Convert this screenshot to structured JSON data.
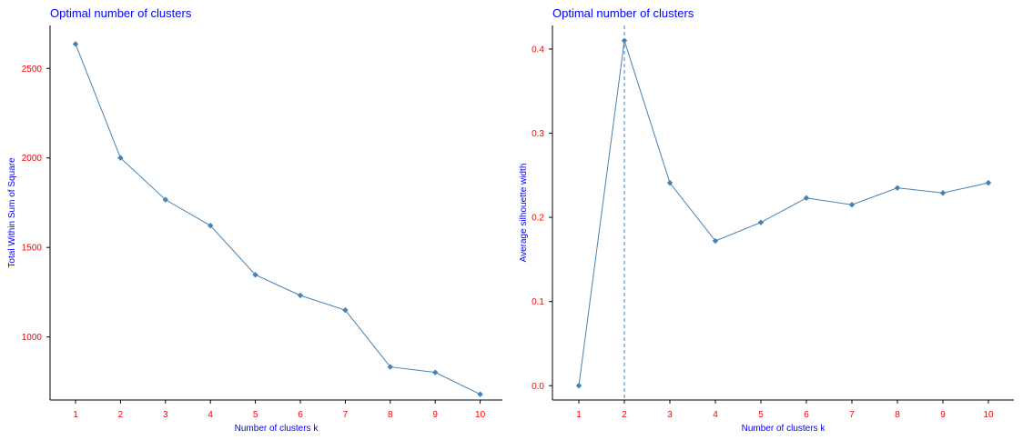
{
  "colors": {
    "title": "#0000ff",
    "axis_label": "#0000ff",
    "tick_label": "#ff0000",
    "series": "#4682b4",
    "axis_line": "#000000"
  },
  "chart_data": [
    {
      "type": "line",
      "title": "Optimal number of clusters",
      "xlabel": "Number of clusters k",
      "ylabel": "Total Within Sum of Square",
      "x": [
        1,
        2,
        3,
        4,
        5,
        6,
        7,
        8,
        9,
        10
      ],
      "values": [
        2636,
        2000,
        1767,
        1622,
        1347,
        1232,
        1150,
        833,
        802,
        680
      ],
      "yticks": [
        1000,
        1500,
        2000,
        2500
      ],
      "ylim": [
        648,
        2740
      ],
      "grid": false,
      "vline": null
    },
    {
      "type": "line",
      "title": "Optimal number of clusters",
      "xlabel": "Number of clusters k",
      "ylabel": "Average silhouette width",
      "x": [
        1,
        2,
        3,
        4,
        5,
        6,
        7,
        8,
        9,
        10
      ],
      "values": [
        0,
        0.41,
        0.241,
        0.172,
        0.194,
        0.223,
        0.215,
        0.235,
        0.229,
        0.241
      ],
      "yticks": [
        0.0,
        0.1,
        0.2,
        0.3,
        0.4
      ],
      "ylim": [
        -0.017,
        0.428
      ],
      "grid": false,
      "vline": 2
    }
  ]
}
